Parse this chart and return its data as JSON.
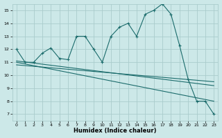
{
  "title": "",
  "xlabel": "Humidex (Indice chaleur)",
  "ylabel": "",
  "bg_color": "#cce8e8",
  "grid_color": "#aacccc",
  "line_color": "#1a6b6b",
  "xlim": [
    -0.5,
    23.5
  ],
  "ylim": [
    6.5,
    15.5
  ],
  "xticks": [
    0,
    1,
    2,
    3,
    4,
    5,
    6,
    7,
    8,
    9,
    10,
    11,
    12,
    13,
    14,
    15,
    16,
    17,
    18,
    19,
    20,
    21,
    22,
    23
  ],
  "yticks": [
    7,
    8,
    9,
    10,
    11,
    12,
    13,
    14,
    15
  ],
  "line1_x": [
    0,
    1,
    2,
    3,
    4,
    5,
    6,
    7,
    8,
    9,
    10,
    11,
    12,
    13,
    14,
    15,
    16,
    17,
    18,
    19,
    20,
    21,
    22,
    23
  ],
  "line1_y": [
    12.0,
    11.0,
    11.0,
    11.7,
    12.1,
    11.3,
    11.2,
    13.0,
    13.0,
    12.0,
    11.0,
    13.0,
    13.7,
    14.0,
    13.0,
    14.7,
    15.0,
    15.5,
    14.7,
    12.3,
    9.7,
    8.0,
    8.0,
    7.0
  ],
  "line2_x": [
    0,
    23
  ],
  "line2_y": [
    11.0,
    8.0
  ],
  "line3_x": [
    0,
    23
  ],
  "line3_y": [
    11.1,
    9.2
  ],
  "line4_x": [
    0,
    23
  ],
  "line4_y": [
    10.8,
    9.5
  ]
}
